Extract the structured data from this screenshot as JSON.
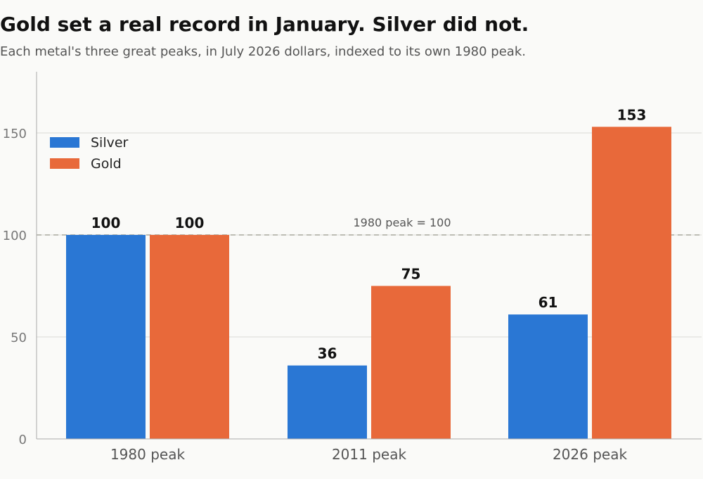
{
  "chart_data": {
    "type": "bar",
    "title": "Gold set a real record in January. Silver did not.",
    "subtitle": "Each metal's three great peaks, in July 2026 dollars, indexed to its own 1980 peak.",
    "categories": [
      "1980 peak",
      "2011 peak",
      "2026 peak"
    ],
    "series": [
      {
        "name": "Silver",
        "values": [
          100,
          36,
          61
        ],
        "color": "#2a77d4"
      },
      {
        "name": "Gold",
        "values": [
          100,
          75,
          153
        ],
        "color": "#e8693a"
      }
    ],
    "data_labels": [
      [
        "100",
        "36",
        "61"
      ],
      [
        "100",
        "75",
        "153"
      ]
    ],
    "ylim": [
      0,
      180
    ],
    "yticks": [
      0,
      50,
      100,
      150
    ],
    "ytick_labels": [
      "0",
      "50",
      "100",
      "150"
    ],
    "reference_line": {
      "value": 100,
      "label": "1980 peak = 100"
    },
    "grid": "horizontal",
    "legend": "top-left",
    "xlabel": "",
    "ylabel": ""
  }
}
